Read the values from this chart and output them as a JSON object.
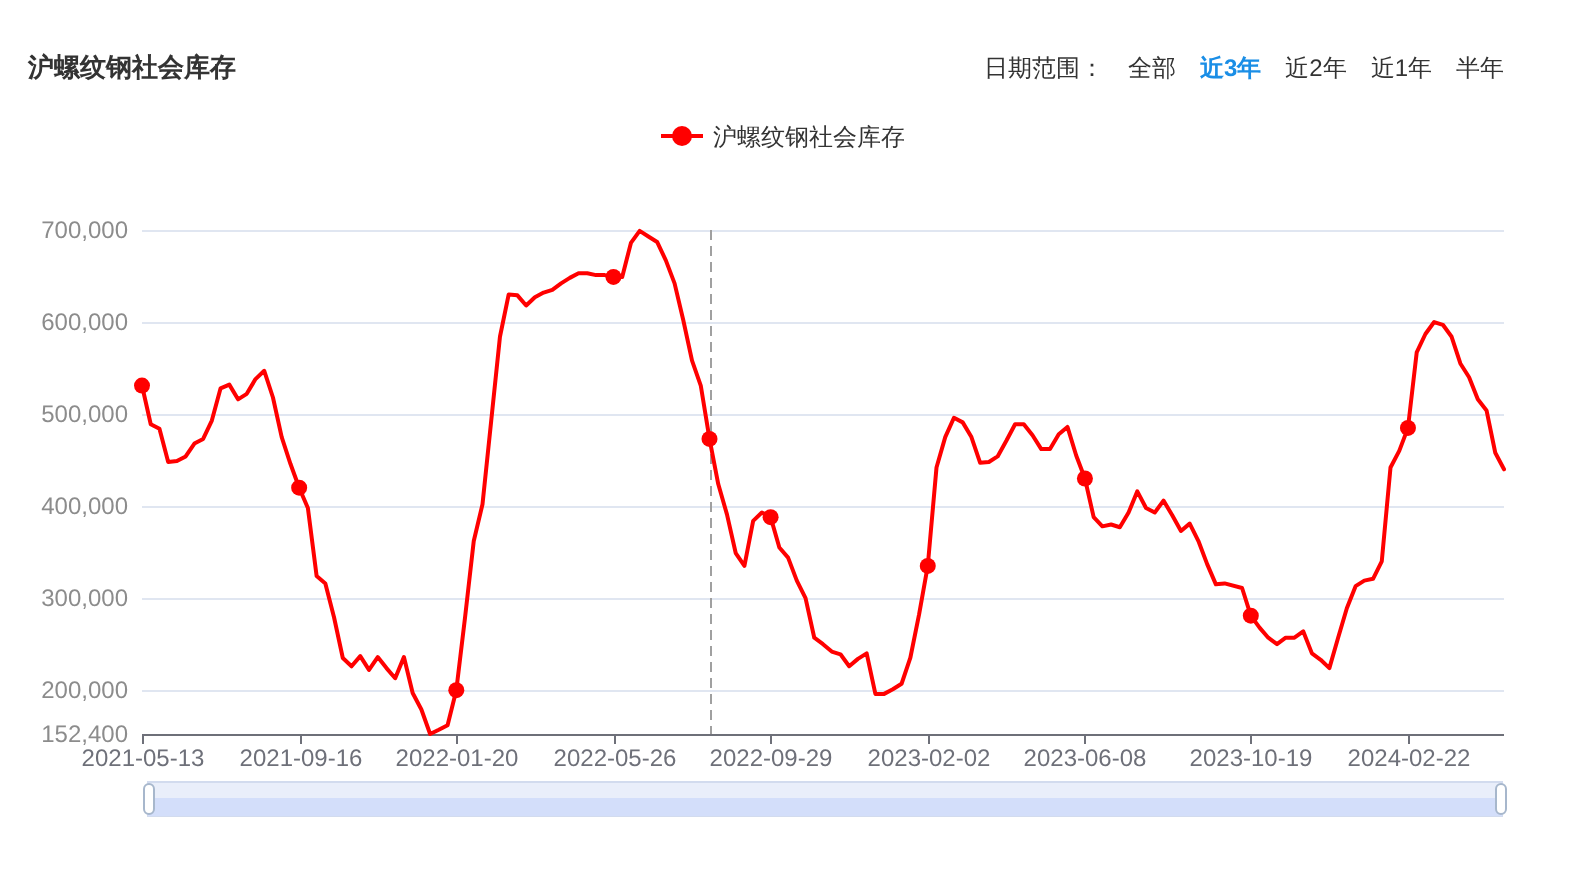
{
  "chart_data": {
    "type": "line",
    "title": "沪螺纹钢社会库存",
    "annotations": [
      "日期范围：",
      "全部",
      "近3年",
      "近2年",
      "近1年",
      "半年"
    ],
    "x": [
      "2021-05-13",
      "2021-05-20",
      "2021-05-27",
      "2021-06-03",
      "2021-06-10",
      "2021-06-17",
      "2021-06-24",
      "2021-07-01",
      "2021-07-08",
      "2021-07-15",
      "2021-07-22",
      "2021-07-29",
      "2021-08-05",
      "2021-08-12",
      "2021-08-19",
      "2021-08-26",
      "2021-09-02",
      "2021-09-09",
      "2021-09-16",
      "2021-09-23",
      "2021-09-30",
      "2021-10-07",
      "2021-10-14",
      "2021-10-21",
      "2021-10-28",
      "2021-11-04",
      "2021-11-11",
      "2021-11-18",
      "2021-11-25",
      "2021-12-02",
      "2021-12-09",
      "2021-12-16",
      "2021-12-23",
      "2021-12-30",
      "2022-01-06",
      "2022-01-13",
      "2022-01-20",
      "2022-01-27",
      "2022-02-03",
      "2022-02-10",
      "2022-02-17",
      "2022-02-24",
      "2022-03-03",
      "2022-03-10",
      "2022-03-17",
      "2022-03-24",
      "2022-03-31",
      "2022-04-07",
      "2022-04-14",
      "2022-04-21",
      "2022-04-28",
      "2022-05-05",
      "2022-05-12",
      "2022-05-19",
      "2022-05-26",
      "2022-06-02",
      "2022-06-09",
      "2022-06-16",
      "2022-06-23",
      "2022-06-30",
      "2022-07-07",
      "2022-07-14",
      "2022-07-21",
      "2022-07-28",
      "2022-08-04",
      "2022-08-11",
      "2022-08-18",
      "2022-08-25",
      "2022-09-01",
      "2022-09-08",
      "2022-09-15",
      "2022-09-22",
      "2022-09-29",
      "2022-10-06",
      "2022-10-13",
      "2022-10-20",
      "2022-10-27",
      "2022-11-03",
      "2022-11-10",
      "2022-11-17",
      "2022-11-24",
      "2022-12-01",
      "2022-12-08",
      "2022-12-15",
      "2022-12-22",
      "2022-12-29",
      "2023-01-05",
      "2023-01-12",
      "2023-01-19",
      "2023-01-26",
      "2023-02-02",
      "2023-02-09",
      "2023-02-16",
      "2023-02-23",
      "2023-03-02",
      "2023-03-09",
      "2023-03-16",
      "2023-03-23",
      "2023-03-30",
      "2023-04-06",
      "2023-04-13",
      "2023-04-20",
      "2023-04-27",
      "2023-05-04",
      "2023-05-11",
      "2023-05-18",
      "2023-05-25",
      "2023-06-01",
      "2023-06-08",
      "2023-06-15",
      "2023-06-22",
      "2023-06-29",
      "2023-07-06",
      "2023-07-13",
      "2023-07-20",
      "2023-07-27",
      "2023-08-03",
      "2023-08-10",
      "2023-08-17",
      "2023-08-24",
      "2023-08-31",
      "2023-09-07",
      "2023-09-14",
      "2023-09-21",
      "2023-09-28",
      "2023-10-12",
      "2023-10-19",
      "2023-10-26",
      "2023-11-02",
      "2023-11-09",
      "2023-11-16",
      "2023-11-23",
      "2023-11-30",
      "2023-12-07",
      "2023-12-14",
      "2023-12-21",
      "2023-12-28",
      "2024-01-04",
      "2024-01-11",
      "2024-01-18",
      "2024-01-25",
      "2024-02-01",
      "2024-02-08",
      "2024-02-15",
      "2024-02-22",
      "2024-02-29",
      "2024-03-07",
      "2024-03-14",
      "2024-03-21",
      "2024-03-28",
      "2024-04-04",
      "2024-04-11",
      "2024-04-18",
      "2024-04-25",
      "2024-05-02",
      "2024-05-09"
    ],
    "series": [
      {
        "name": "沪螺纹钢社会库存",
        "color": "#ff0000",
        "values": [
          531000,
          489000,
          484000,
          448000,
          449000,
          454000,
          468000,
          473000,
          493000,
          528000,
          532000,
          516000,
          522000,
          538000,
          547000,
          518000,
          475000,
          446000,
          420000,
          398000,
          324000,
          316000,
          279000,
          235000,
          226000,
          237000,
          222000,
          236000,
          224000,
          213000,
          236000,
          197000,
          179000,
          152400,
          157000,
          162000,
          200000,
          279000,
          362000,
          402000,
          493000,
          584000,
          630000,
          629000,
          618000,
          627000,
          632000,
          635000,
          642000,
          648000,
          653000,
          653000,
          651000,
          651000,
          649000,
          649000,
          686000,
          699000,
          693000,
          687000,
          667000,
          642000,
          602000,
          558000,
          531000,
          473000,
          424000,
          391000,
          349000,
          335000,
          384000,
          393000,
          388000,
          355000,
          344000,
          319000,
          300000,
          257000,
          250000,
          242000,
          239000,
          226000,
          234000,
          240000,
          196000,
          196000,
          201000,
          207000,
          235000,
          282000,
          335000,
          442000,
          475000,
          496000,
          491000,
          475000,
          447000,
          448000,
          454000,
          471000,
          489000,
          489000,
          477000,
          462000,
          462000,
          478000,
          486000,
          455000,
          430000,
          388000,
          378000,
          380000,
          377000,
          393000,
          416000,
          398000,
          393000,
          406000,
          390000,
          373000,
          381000,
          362000,
          337000,
          315000,
          316000,
          311000,
          281000,
          268000,
          257000,
          250000,
          257000,
          257000,
          264000,
          240000,
          233000,
          224000,
          257000,
          289000,
          313000,
          319000,
          321000,
          340000,
          442000,
          460000,
          485000,
          567000,
          587000,
          600000,
          597000,
          584000,
          555000,
          540000,
          516000,
          504000,
          458000,
          440000
        ]
      },
      {
        "type": "scatter",
        "color": "#ff0000",
        "marker": "circle",
        "x": [
          "2021-05-13",
          "2021-09-16",
          "2022-01-20",
          "2022-05-26",
          "2022-08-11",
          "2022-09-29",
          "2023-02-02",
          "2023-06-08",
          "2023-10-19",
          "2024-02-22"
        ],
        "values": [
          531000,
          420000,
          200000,
          649000,
          473000,
          388000,
          335000,
          430000,
          281000,
          485000
        ]
      }
    ],
    "xlim": [
      "2021-05-13",
      "2024-05-09"
    ],
    "xticks": [
      "2021-05-13",
      "2021-09-16",
      "2022-01-20",
      "2022-05-26",
      "2022-09-29",
      "2023-02-02",
      "2023-06-08",
      "2023-10-19",
      "2024-02-22"
    ],
    "ylim": [
      152400,
      700000
    ],
    "yticks": [
      {
        "value": 152400,
        "label": "152,400"
      },
      {
        "value": 200000,
        "label": "200,000"
      },
      {
        "value": 300000,
        "label": "300,000"
      },
      {
        "value": 400000,
        "label": "400,000"
      },
      {
        "value": 500000,
        "label": "500,000"
      },
      {
        "value": 600000,
        "label": "600,000"
      },
      {
        "value": 700000,
        "label": "700,000"
      }
    ],
    "grid": "y",
    "legend": "top",
    "line_style": "solid",
    "ref_lines": [
      {
        "axis": "x",
        "value": "2022-08-11",
        "color": "#a0a0a0",
        "line_style": "dashed"
      }
    ]
  }
}
